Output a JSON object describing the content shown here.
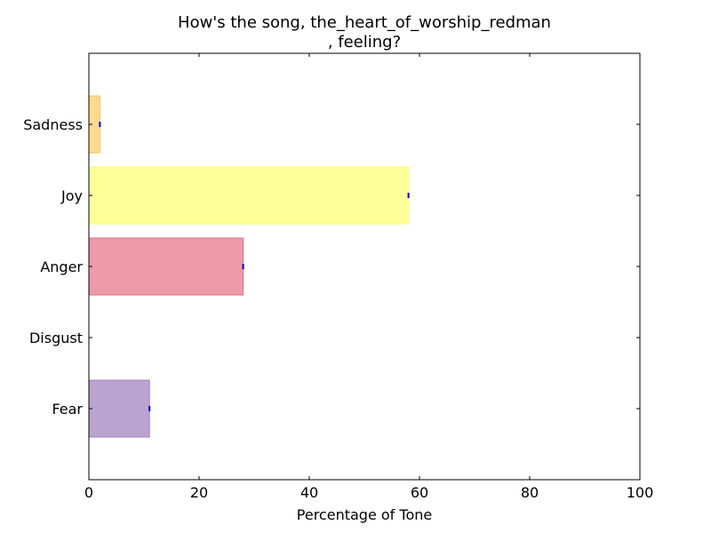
{
  "chart_data": {
    "type": "bar",
    "orientation": "horizontal",
    "title_lines": [
      "How's the song, the_heart_of_worship_redman",
      ", feeling?"
    ],
    "xlabel": "Percentage of Tone",
    "ylabel": "",
    "xlim": [
      0,
      100
    ],
    "xticks": [
      "0",
      "20",
      "40",
      "60",
      "80",
      "100"
    ],
    "categories": [
      "Sadness",
      "Joy",
      "Anger",
      "Disgust",
      "Fear"
    ],
    "values": [
      2,
      58,
      28,
      0,
      11
    ],
    "colors": {
      "Sadness": {
        "fill": "#FFDA91",
        "edge": "#F5C060"
      },
      "Joy": {
        "fill": "#FFFF99",
        "edge": "#FFFF66"
      },
      "Anger": {
        "fill": "#EE9AA8",
        "edge": "#E06A80"
      },
      "Disgust": {
        "fill": "#9ACD9A",
        "edge": "#6AAA6A"
      },
      "Fear": {
        "fill": "#BBA3D0",
        "edge": "#A57DC8"
      }
    },
    "marker_color": "#0000CC",
    "grid": false,
    "legend": "none"
  }
}
